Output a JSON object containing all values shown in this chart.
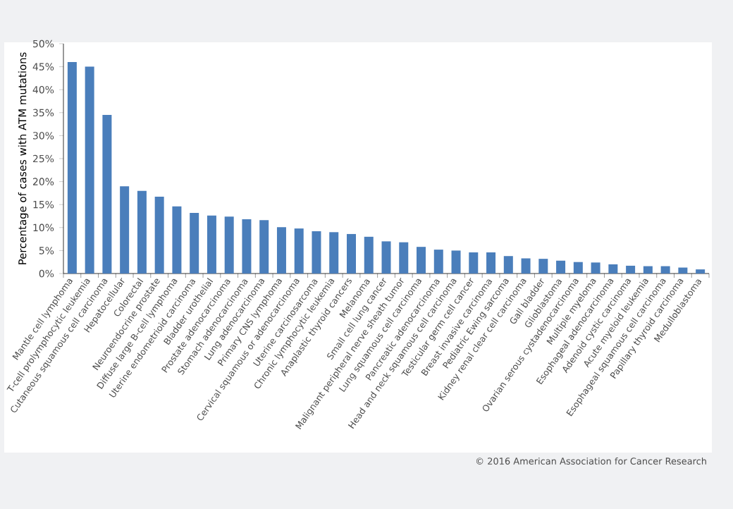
{
  "chart_data": {
    "type": "bar",
    "ylabel": "Percentage of cases with ATM mutations",
    "categories": [
      "Mantle cell lymphoma",
      "T-cell prolymphocytic leukemia",
      "Cutaneous squamous cell carcinoma",
      "Hepatocellular",
      "Colorectal",
      "Neuroendocrine prostate",
      "Diffuse large B-cell lymphoma",
      "Uterine endometrioid carcinoma",
      "Bladder urothelial",
      "Prostate adenocarcinoma",
      "Stomach adenocarcinoma",
      "Lung adenocarcinoma",
      "Primary CNS lymphoma",
      "Cervical squamous or adenocarcinoma",
      "Uterine carcinosarcoma",
      "Chronic lymphocytic leukemia",
      "Anaplastic thyroid cancers",
      "Melanoma",
      "Small cell lung cancer",
      "Malignant peripheral nerve sheath tumor",
      "Lung squamous cell carcinoma",
      "Pancreatic adenocarcinoma",
      "Head and neck squamous cell carcinoma",
      "Testicular germ cell cancer",
      "Breast invasive carcinoma",
      "Pediatric Ewing sarcoma",
      "Kidney renal clear cell carcinoma",
      "Gall bladder",
      "Glioblastoma",
      "Ovarian serous cystadenocarcinoma",
      "Multiple myeloma",
      "Esophageal adenocarcinoma",
      "Adenoid cystic carcinoma",
      "Acute myeloid leukemia",
      "Esophageal squamous cell carcinoma",
      "Papillary thyroid carcinoma",
      "Medulloblastoma"
    ],
    "values": [
      46,
      45,
      34.5,
      19,
      18,
      16.7,
      14.6,
      13.2,
      12.6,
      12.4,
      11.8,
      11.6,
      10.1,
      9.8,
      9.2,
      9.0,
      8.6,
      8.0,
      7.0,
      6.8,
      5.8,
      5.2,
      5.0,
      4.6,
      4.6,
      3.8,
      3.3,
      3.2,
      2.8,
      2.5,
      2.4,
      2.0,
      1.7,
      1.6,
      1.6,
      1.3,
      0.9
    ],
    "color": "#4a7ebb",
    "ylim": [
      0,
      50
    ],
    "yticks": [
      {
        "value": 0,
        "label": "0%"
      },
      {
        "value": 5,
        "label": "5%"
      },
      {
        "value": 10,
        "label": "10%"
      },
      {
        "value": 15,
        "label": "15%"
      },
      {
        "value": 20,
        "label": "20%"
      },
      {
        "value": 25,
        "label": "25%"
      },
      {
        "value": 30,
        "label": "30%"
      },
      {
        "value": 35,
        "label": "35%"
      },
      {
        "value": 40,
        "label": "40%"
      },
      {
        "value": 45,
        "label": "45%"
      },
      {
        "value": 50,
        "label": "50%"
      }
    ],
    "grid": false,
    "annotations": [
      "© 2016 American Association for Cancer Research"
    ]
  }
}
